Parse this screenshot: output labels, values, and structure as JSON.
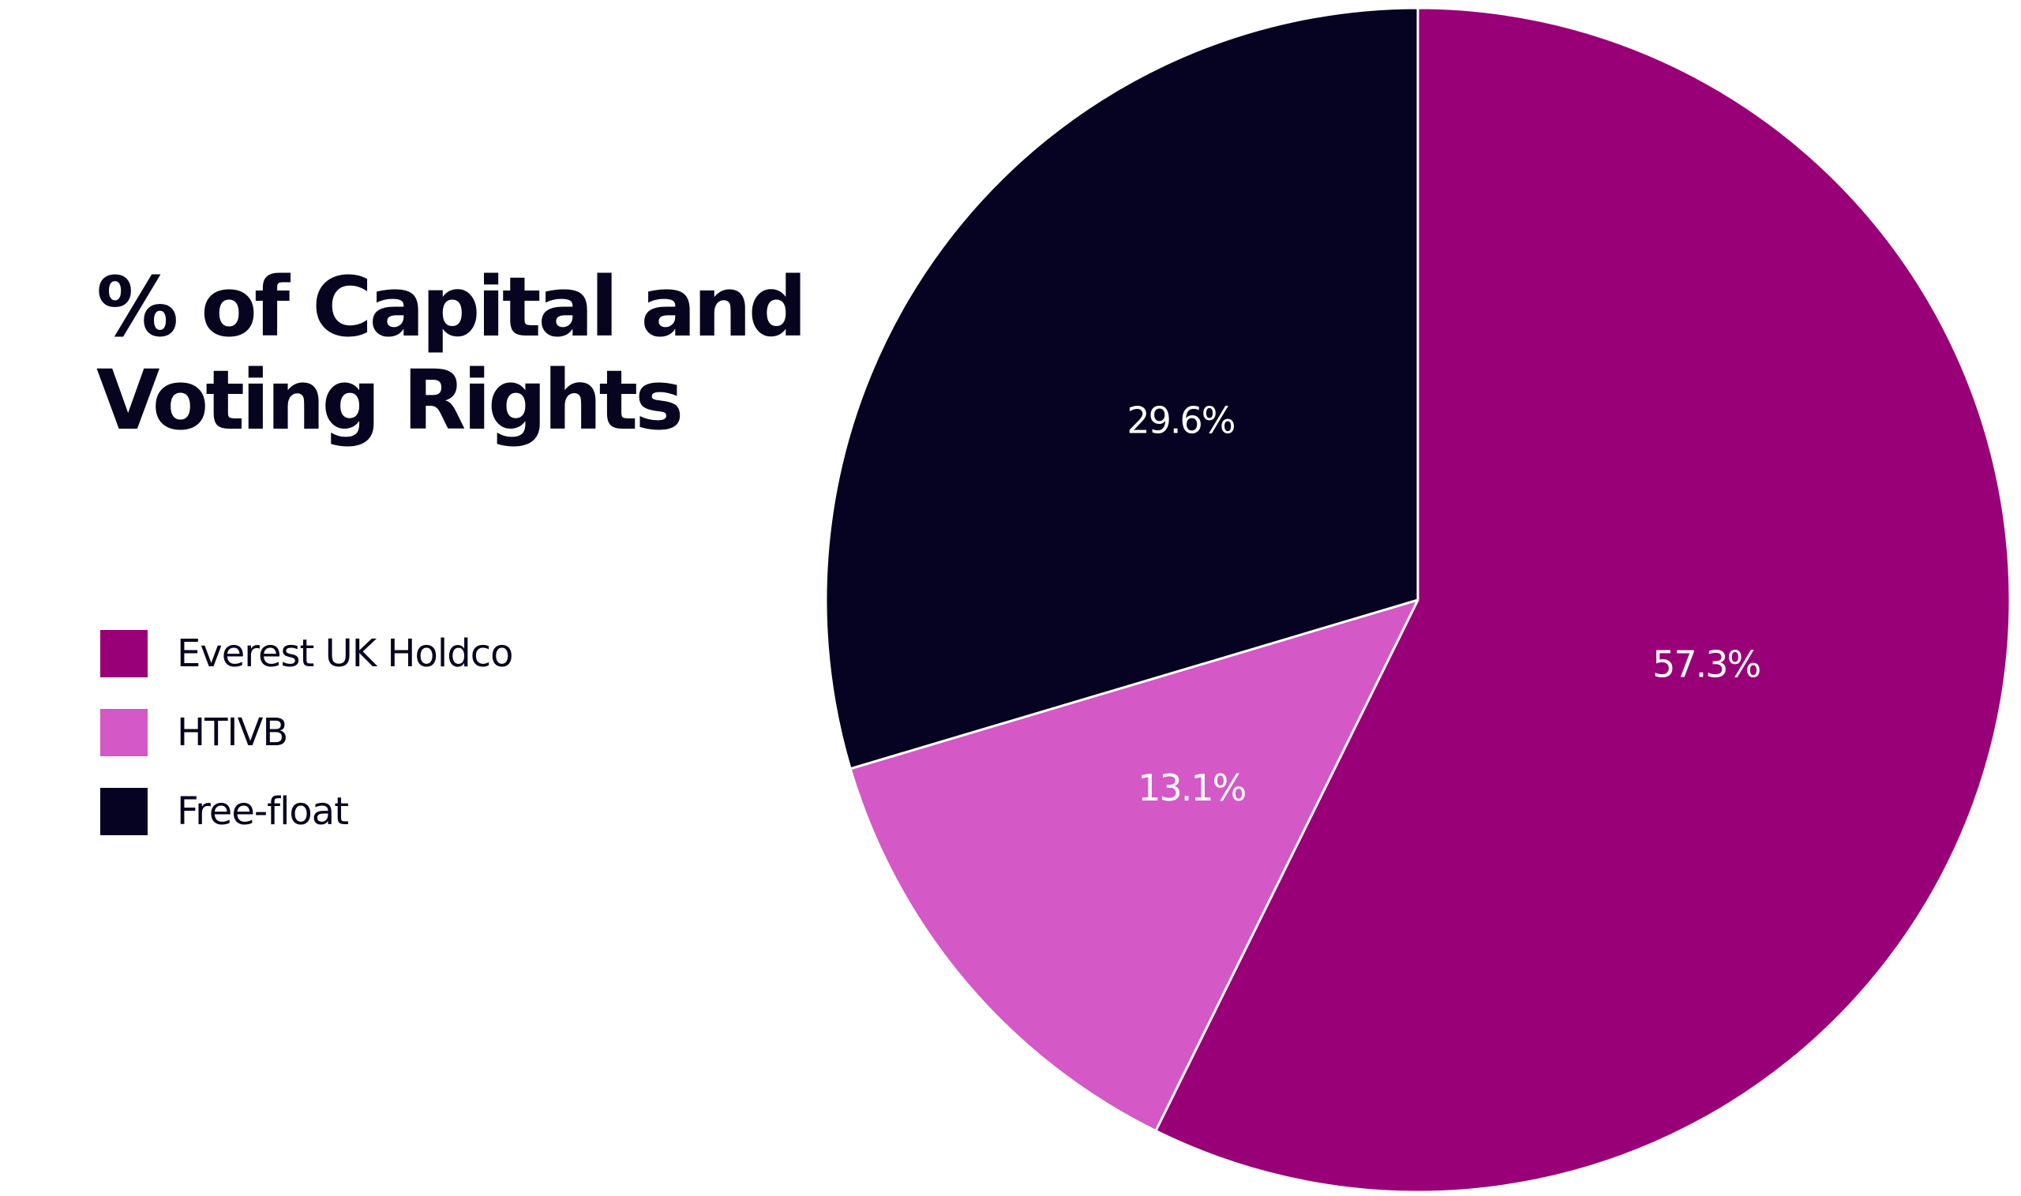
{
  "chart_data": {
    "type": "pie",
    "title": "% of Capital and Voting Rights",
    "legend_position": "left",
    "slices": [
      {
        "name": "Everest UK Holdco",
        "value": 57.3,
        "label": "57.3%",
        "color": "#990077"
      },
      {
        "name": "HTIVB",
        "value": 13.1,
        "label": "13.1%",
        "color": "#d458c6"
      },
      {
        "name": "Free-float",
        "value": 29.6,
        "label": "29.6%",
        "color": "#050321"
      }
    ]
  }
}
